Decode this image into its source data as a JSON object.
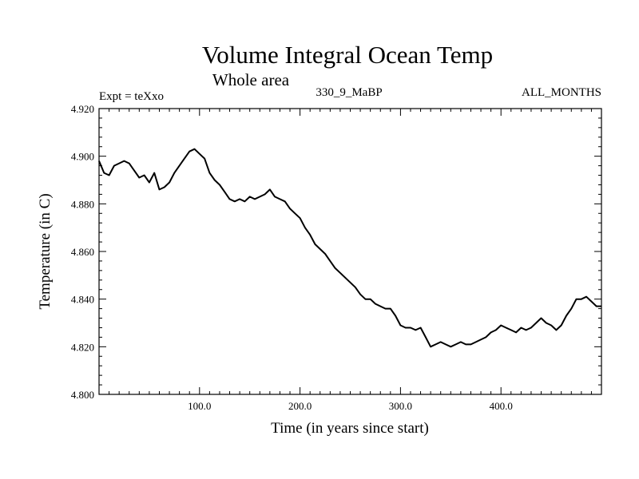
{
  "chart_data": {
    "type": "line",
    "title": "Volume Integral Ocean Temp",
    "subtitle": "Whole area",
    "header_left": "Expt = teXxo",
    "header_center": "330_9_MaBP",
    "header_right": "ALL_MONTHS",
    "xlabel": "Time (in years since start)",
    "ylabel": "Temperature (in C)",
    "xlim": [
      0,
      500
    ],
    "ylim": [
      4.8,
      4.92
    ],
    "x_ticks": [
      100,
      200,
      300,
      400
    ],
    "x_tick_labels": [
      "100.0",
      "200.0",
      "300.0",
      "400.0"
    ],
    "y_ticks": [
      4.8,
      4.82,
      4.84,
      4.86,
      4.88,
      4.9,
      4.92
    ],
    "y_tick_labels": [
      "4.800",
      "4.820",
      "4.840",
      "4.860",
      "4.880",
      "4.900",
      "4.920"
    ],
    "grid": false,
    "series": [
      {
        "name": "Volume integral ocean temperature",
        "color": "#000000",
        "x": [
          0,
          5,
          10,
          15,
          20,
          25,
          30,
          35,
          40,
          45,
          50,
          55,
          60,
          65,
          70,
          75,
          80,
          85,
          90,
          95,
          100,
          105,
          110,
          115,
          120,
          125,
          130,
          135,
          140,
          145,
          150,
          155,
          160,
          165,
          170,
          175,
          180,
          185,
          190,
          195,
          200,
          205,
          210,
          215,
          220,
          225,
          230,
          235,
          240,
          245,
          250,
          255,
          260,
          265,
          270,
          275,
          280,
          285,
          290,
          295,
          300,
          305,
          310,
          315,
          320,
          325,
          330,
          335,
          340,
          345,
          350,
          355,
          360,
          365,
          370,
          375,
          380,
          385,
          390,
          395,
          400,
          405,
          410,
          415,
          420,
          425,
          430,
          435,
          440,
          445,
          450,
          455,
          460,
          465,
          470,
          475,
          480,
          485,
          490,
          495,
          500
        ],
        "y": [
          4.898,
          4.893,
          4.892,
          4.896,
          4.897,
          4.898,
          4.897,
          4.894,
          4.891,
          4.892,
          4.889,
          4.893,
          4.886,
          4.887,
          4.889,
          4.893,
          4.896,
          4.899,
          4.902,
          4.903,
          4.901,
          4.899,
          4.893,
          4.89,
          4.888,
          4.885,
          4.882,
          4.881,
          4.882,
          4.881,
          4.883,
          4.882,
          4.883,
          4.884,
          4.886,
          4.883,
          4.882,
          4.881,
          4.878,
          4.876,
          4.874,
          4.87,
          4.867,
          4.863,
          4.861,
          4.859,
          4.856,
          4.853,
          4.851,
          4.849,
          4.847,
          4.845,
          4.842,
          4.84,
          4.84,
          4.838,
          4.837,
          4.836,
          4.836,
          4.833,
          4.829,
          4.828,
          4.828,
          4.827,
          4.828,
          4.824,
          4.82,
          4.821,
          4.822,
          4.821,
          4.82,
          4.821,
          4.822,
          4.821,
          4.821,
          4.822,
          4.823,
          4.824,
          4.826,
          4.827,
          4.829,
          4.828,
          4.827,
          4.826,
          4.828,
          4.827,
          4.828,
          4.83,
          4.832,
          4.83,
          4.829,
          4.827,
          4.829,
          4.833,
          4.836,
          4.84,
          4.84,
          4.841,
          4.839,
          4.837,
          4.837
        ]
      }
    ]
  }
}
